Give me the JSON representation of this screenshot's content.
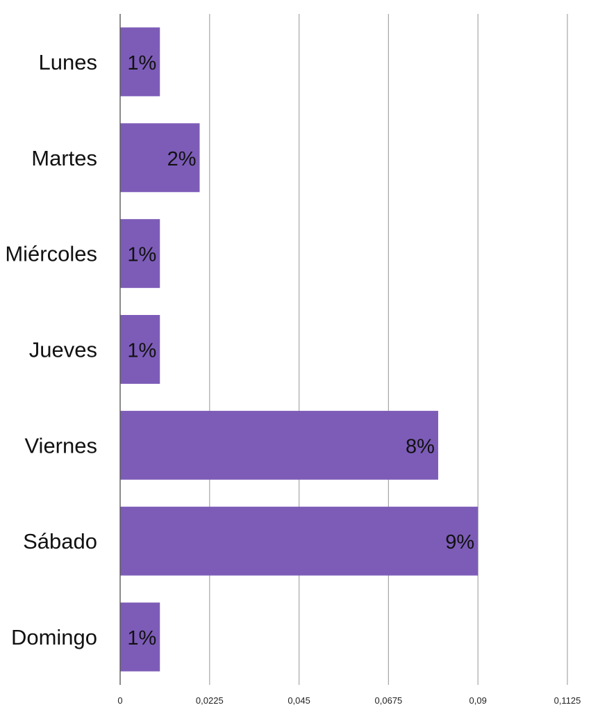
{
  "chart_data": {
    "type": "bar",
    "orientation": "horizontal",
    "categories": [
      "Lunes",
      "Martes",
      "Miércoles",
      "Jueves",
      "Viernes",
      "Sábado",
      "Domingo"
    ],
    "values": [
      0.01,
      0.02,
      0.01,
      0.01,
      0.08,
      0.09,
      0.01
    ],
    "data_labels": [
      "1%",
      "2%",
      "1%",
      "1%",
      "8%",
      "9%",
      "1%"
    ],
    "x_ticks": [
      "0",
      "0,0225",
      "0,045",
      "0,0675",
      "0,09",
      "0,1125"
    ],
    "x_tick_values": [
      0,
      0.0225,
      0.045,
      0.0675,
      0.09,
      0.1125
    ],
    "xlim": [
      0,
      0.1125
    ],
    "title": "",
    "xlabel": "",
    "ylabel": "",
    "grid": "vertical",
    "legend": "none",
    "bar_color": "#7d5cb8"
  }
}
